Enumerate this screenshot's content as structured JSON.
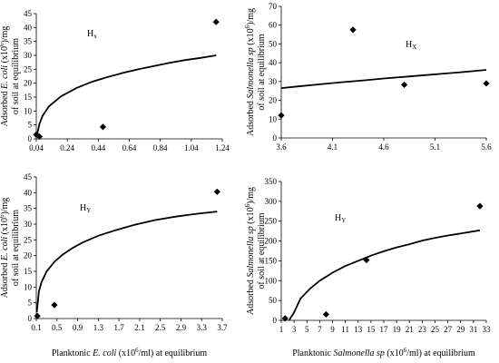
{
  "chart_data": [
    {
      "type": "scatter",
      "panel": "top-left",
      "annotation": {
        "main": "H",
        "sub": "x"
      },
      "ylabel_lines": [
        [
          {
            "t": "Adsorbed "
          },
          {
            "t": "E. coli",
            "i": true
          },
          {
            "t": " (x10"
          },
          {
            "t": "6",
            "sup": true
          },
          {
            "t": ")/mg"
          }
        ],
        [
          {
            "t": "of soil at equilibrium"
          }
        ]
      ],
      "xlabel_lines": [],
      "x_ticks": [
        "0.04",
        "0.24",
        "0.44",
        "0.64",
        "0.84",
        "1.04",
        "1.24"
      ],
      "y_ticks": [
        "0",
        "5",
        "10",
        "15",
        "20",
        "25",
        "30",
        "35",
        "40",
        "45"
      ],
      "xlim": [
        0.04,
        1.24
      ],
      "ylim": [
        0,
        45
      ],
      "series": [
        {
          "kind": "points",
          "x": [
            0.04,
            0.06,
            0.47,
            1.2
          ],
          "y": [
            1.5,
            0.8,
            4.3,
            42
          ]
        },
        {
          "kind": "fit-curve",
          "x": [
            0.045,
            0.06,
            0.08,
            0.12,
            0.2,
            0.3,
            0.4,
            0.5,
            0.6,
            0.7,
            0.8,
            0.9,
            1.0,
            1.1,
            1.2
          ],
          "y": [
            1.5,
            5.3,
            8.2,
            11.6,
            15.3,
            18.3,
            20.5,
            22.2,
            23.7,
            25.0,
            26.2,
            27.3,
            28.3,
            29.1,
            30.0
          ]
        }
      ]
    },
    {
      "type": "scatter",
      "panel": "top-right",
      "annotation": {
        "main": "H",
        "sub": "X"
      },
      "ylabel_lines": [
        [
          {
            "t": "Adsorbed "
          },
          {
            "t": "Salmonella sp",
            "i": true
          },
          {
            "t": " (x10"
          },
          {
            "t": "6",
            "sup": true
          },
          {
            "t": ")/mg"
          }
        ],
        [
          {
            "t": "of soil at equilibrium"
          }
        ]
      ],
      "xlabel_lines": [],
      "x_ticks": [
        "3.6",
        "4.1",
        "4.6",
        "5.1",
        "5.6"
      ],
      "y_ticks": [
        "0",
        "10",
        "20",
        "30",
        "40",
        "50",
        "60",
        "70"
      ],
      "xlim": [
        3.6,
        5.6
      ],
      "ylim": [
        0,
        70
      ],
      "series": [
        {
          "kind": "points",
          "x": [
            3.6,
            4.3,
            4.8,
            5.6
          ],
          "y": [
            12,
            57.5,
            28.3,
            29
          ]
        },
        {
          "kind": "fit-curve",
          "x": [
            3.6,
            3.8,
            4.0,
            4.2,
            4.4,
            4.6,
            4.8,
            5.0,
            5.2,
            5.4,
            5.6
          ],
          "y": [
            26.5,
            27.6,
            28.7,
            29.7,
            30.6,
            31.6,
            32.5,
            33.4,
            34.3,
            35.2,
            36.2
          ]
        }
      ]
    },
    {
      "type": "scatter",
      "panel": "bottom-left",
      "annotation": {
        "main": "H",
        "sub": "Y"
      },
      "ylabel_lines": [
        [
          {
            "t": "Adsorbed "
          },
          {
            "t": "E. coli",
            "i": true
          },
          {
            "t": " (x10"
          },
          {
            "t": "6",
            "sup": true
          },
          {
            "t": ")/mg"
          }
        ],
        [
          {
            "t": "of soil at equilibrium"
          }
        ]
      ],
      "xlabel_lines": [
        [
          {
            "t": "Planktonic "
          },
          {
            "t": "E. coli",
            "i": true
          },
          {
            "t": "  (x10"
          },
          {
            "t": "6",
            "sup": true
          },
          {
            "t": "/ml) at  equilibrium"
          }
        ]
      ],
      "x_ticks": [
        "0.1",
        "0.5",
        "0.9",
        "1.3",
        "1.7",
        "2.1",
        "2.5",
        "2.9",
        "3.3",
        "3.7"
      ],
      "y_ticks": [
        "0",
        "5",
        "10",
        "15",
        "20",
        "25",
        "30",
        "35",
        "40",
        "45"
      ],
      "xlim": [
        0.1,
        3.7
      ],
      "ylim": [
        0,
        45
      ],
      "series": [
        {
          "kind": "points",
          "x": [
            0.12,
            0.45,
            3.6
          ],
          "y": [
            0.8,
            4.3,
            40.3
          ]
        },
        {
          "kind": "fit-curve",
          "x": [
            0.11,
            0.15,
            0.2,
            0.3,
            0.45,
            0.6,
            0.8,
            1.0,
            1.3,
            1.6,
            2.0,
            2.4,
            2.8,
            3.2,
            3.6
          ],
          "y": [
            2.0,
            8.5,
            11.5,
            15.0,
            18.0,
            20.2,
            22.4,
            24.2,
            26.3,
            27.9,
            29.8,
            31.3,
            32.4,
            33.3,
            34.0
          ]
        }
      ]
    },
    {
      "type": "scatter",
      "panel": "bottom-right",
      "annotation": {
        "main": "H",
        "sub": "Y"
      },
      "ylabel_lines": [
        [
          {
            "t": "Adsorbed "
          },
          {
            "t": "Salmonella sp",
            "i": true
          },
          {
            "t": " (x10"
          },
          {
            "t": "6",
            "sup": true
          },
          {
            "t": ")/mg"
          }
        ],
        [
          {
            "t": "of soil at equilibrium"
          }
        ]
      ],
      "xlabel_lines": [
        [
          {
            "t": "Planktonic "
          },
          {
            "t": "Salmonella sp",
            "i": true
          },
          {
            "t": " (x10"
          },
          {
            "t": "6",
            "sup": true
          },
          {
            "t": "/ml) at equilibrium"
          }
        ]
      ],
      "x_ticks": [
        "1",
        "3",
        "5",
        "7",
        "9",
        "11",
        "13",
        "15",
        "17",
        "19",
        "21",
        "23",
        "25",
        "27",
        "29",
        "31",
        "33"
      ],
      "y_ticks": [
        "0",
        "50",
        "100",
        "150",
        "200",
        "250",
        "300",
        "350"
      ],
      "xlim": [
        1,
        33
      ],
      "ylim": [
        0,
        350
      ],
      "series": [
        {
          "kind": "points",
          "x": [
            1.6,
            8,
            14.3,
            32
          ],
          "y": [
            5,
            15,
            152,
            288
          ]
        },
        {
          "kind": "fit-curve",
          "x": [
            2.2,
            3,
            4,
            5.5,
            7,
            9,
            11,
            13,
            15,
            17,
            19,
            21,
            23,
            25,
            27,
            29,
            32
          ],
          "y": [
            0,
            20,
            55,
            80,
            100,
            120,
            137,
            150,
            163,
            174,
            184,
            192,
            201,
            208,
            214,
            219,
            227
          ]
        }
      ]
    }
  ]
}
